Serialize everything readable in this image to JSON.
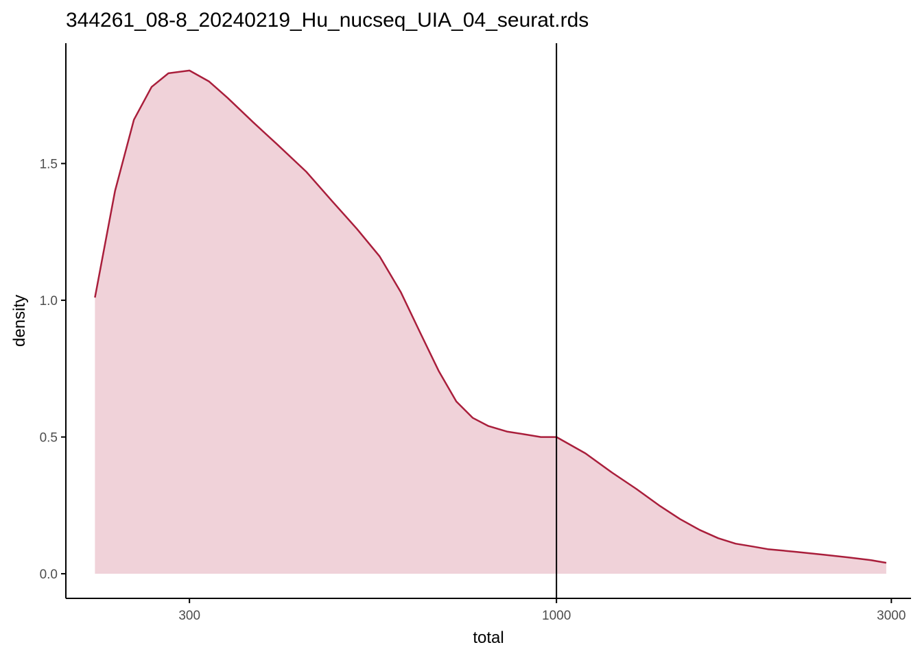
{
  "chart_data": {
    "type": "area",
    "title": "344261_08-8_20240219_Hu_nucseq_UIA_04_seurat.rds",
    "xlabel": "total",
    "ylabel": "density",
    "x_scale": "log10",
    "x_ticks": [
      300,
      1000,
      3000
    ],
    "x_tick_labels": [
      "300",
      "1000",
      "3000"
    ],
    "y_ticks": [
      0.0,
      0.5,
      1.0,
      1.5
    ],
    "y_tick_labels": [
      "0.0",
      "0.5",
      "1.0",
      "1.5"
    ],
    "xlim": [
      200,
      3200
    ],
    "ylim": [
      -0.09,
      1.94
    ],
    "grid": false,
    "legend": "none",
    "line_color": "#a91e3b",
    "fill_color": "#f0d2d9",
    "vline": {
      "x": 1000,
      "color": "#000000"
    },
    "series": [
      {
        "x": [
          220,
          235,
          250,
          265,
          280,
          300,
          320,
          340,
          370,
          400,
          440,
          480,
          520,
          560,
          600,
          640,
          680,
          720,
          760,
          800,
          850,
          900,
          950,
          1000,
          1100,
          1200,
          1300,
          1400,
          1500,
          1600,
          1700,
          1800,
          1900,
          2000,
          2200,
          2400,
          2600,
          2800,
          2950
        ],
        "y": [
          1.01,
          1.4,
          1.66,
          1.78,
          1.83,
          1.84,
          1.8,
          1.74,
          1.65,
          1.57,
          1.47,
          1.36,
          1.26,
          1.16,
          1.03,
          0.88,
          0.74,
          0.63,
          0.57,
          0.54,
          0.52,
          0.51,
          0.5,
          0.5,
          0.44,
          0.37,
          0.31,
          0.25,
          0.2,
          0.16,
          0.13,
          0.11,
          0.1,
          0.09,
          0.08,
          0.07,
          0.06,
          0.05,
          0.04
        ]
      }
    ]
  }
}
